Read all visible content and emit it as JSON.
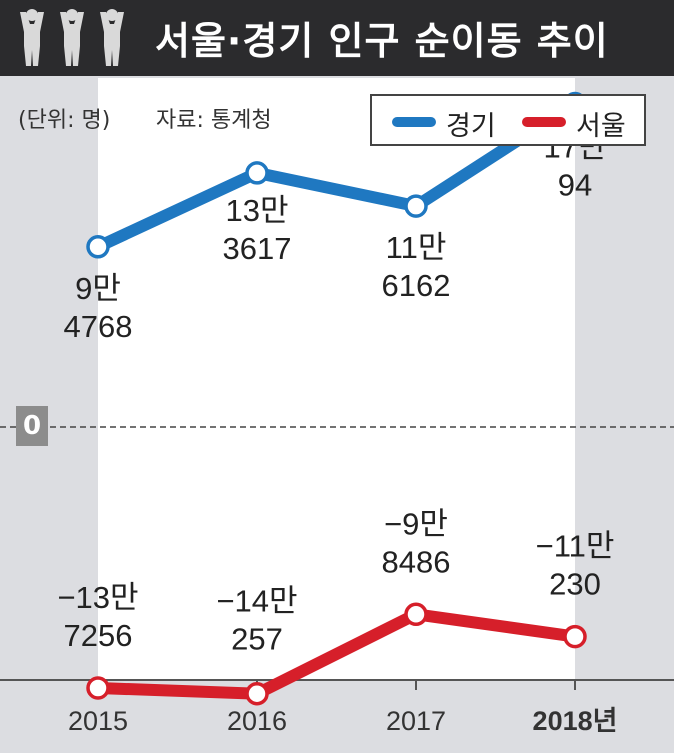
{
  "header": {
    "title": "서울·경기 인구 순이동 추이"
  },
  "meta": {
    "unit": "(단위: 명)",
    "source": "자료: 통계청"
  },
  "colors": {
    "header_bg": "#2b2b2d",
    "plot_bg": "#ffffff",
    "page_bg": "#dcdde1",
    "gyeonggi": "#1f78c1",
    "seoul": "#d61f2a"
  },
  "zero_label": "0",
  "chart_data": {
    "type": "line",
    "x": [
      "2015",
      "2016",
      "2017",
      "2018년"
    ],
    "series": [
      {
        "name": "경기",
        "color": "#1f78c1",
        "values": [
          94768,
          133617,
          116162,
          170094
        ],
        "labels": [
          [
            "9만",
            "4768"
          ],
          [
            "13만",
            "3617"
          ],
          [
            "11만",
            "6162"
          ],
          [
            "17만",
            "94"
          ]
        ]
      },
      {
        "name": "서울",
        "color": "#d61f2a",
        "values": [
          -137256,
          -140257,
          -98486,
          -110230
        ],
        "labels": [
          [
            "−13만",
            "7256"
          ],
          [
            "−14만",
            "257"
          ],
          [
            "−9만",
            "8486"
          ],
          [
            "−11만",
            "230"
          ]
        ]
      }
    ],
    "legend_position": "top-right"
  }
}
